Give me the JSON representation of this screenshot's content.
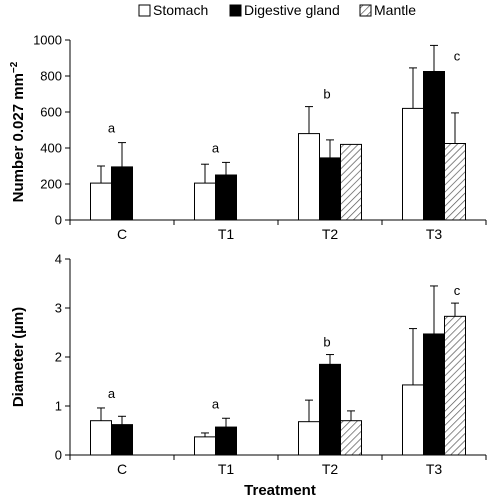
{
  "legend": [
    {
      "name": "Stomach",
      "fill": "white"
    },
    {
      "name": "Digestive gland",
      "fill": "black"
    },
    {
      "name": "Mantle",
      "fill": "hatch"
    }
  ],
  "chart_data": [
    {
      "type": "bar",
      "categories": [
        "C",
        "T1",
        "T2",
        "T3"
      ],
      "ylabel": "Number 0.027 mm",
      "ylabel_sup": "−2",
      "ylim": [
        0,
        1000
      ],
      "yticks": [
        0,
        200,
        400,
        600,
        800,
        1000
      ],
      "series": [
        {
          "name": "Stomach",
          "values": [
            205,
            205,
            480,
            620
          ],
          "errors": [
            95,
            105,
            150,
            225
          ]
        },
        {
          "name": "Digestive gland",
          "values": [
            295,
            250,
            345,
            825
          ],
          "errors": [
            135,
            70,
            100,
            145
          ]
        },
        {
          "name": "Mantle",
          "values": [
            null,
            null,
            420,
            425
          ],
          "errors": [
            null,
            null,
            0,
            170
          ]
        }
      ],
      "annotations": [
        "a",
        "a",
        "b",
        "c"
      ]
    },
    {
      "type": "bar",
      "categories": [
        "C",
        "T1",
        "T2",
        "T3"
      ],
      "ylabel": "Diameter (µm)",
      "xlabel": "Treatment",
      "ylim": [
        0,
        4
      ],
      "yticks": [
        0,
        1,
        2,
        3,
        4
      ],
      "series": [
        {
          "name": "Stomach",
          "values": [
            0.7,
            0.37,
            0.68,
            1.43
          ],
          "errors": [
            0.26,
            0.08,
            0.44,
            1.15
          ]
        },
        {
          "name": "Digestive gland",
          "values": [
            0.62,
            0.57,
            1.85,
            2.47
          ],
          "errors": [
            0.17,
            0.18,
            0.2,
            0.98
          ]
        },
        {
          "name": "Mantle",
          "values": [
            null,
            null,
            0.7,
            2.83
          ],
          "errors": [
            null,
            null,
            0.2,
            0.27
          ]
        }
      ],
      "annotations": [
        "a",
        "a",
        "b",
        "c"
      ]
    }
  ]
}
